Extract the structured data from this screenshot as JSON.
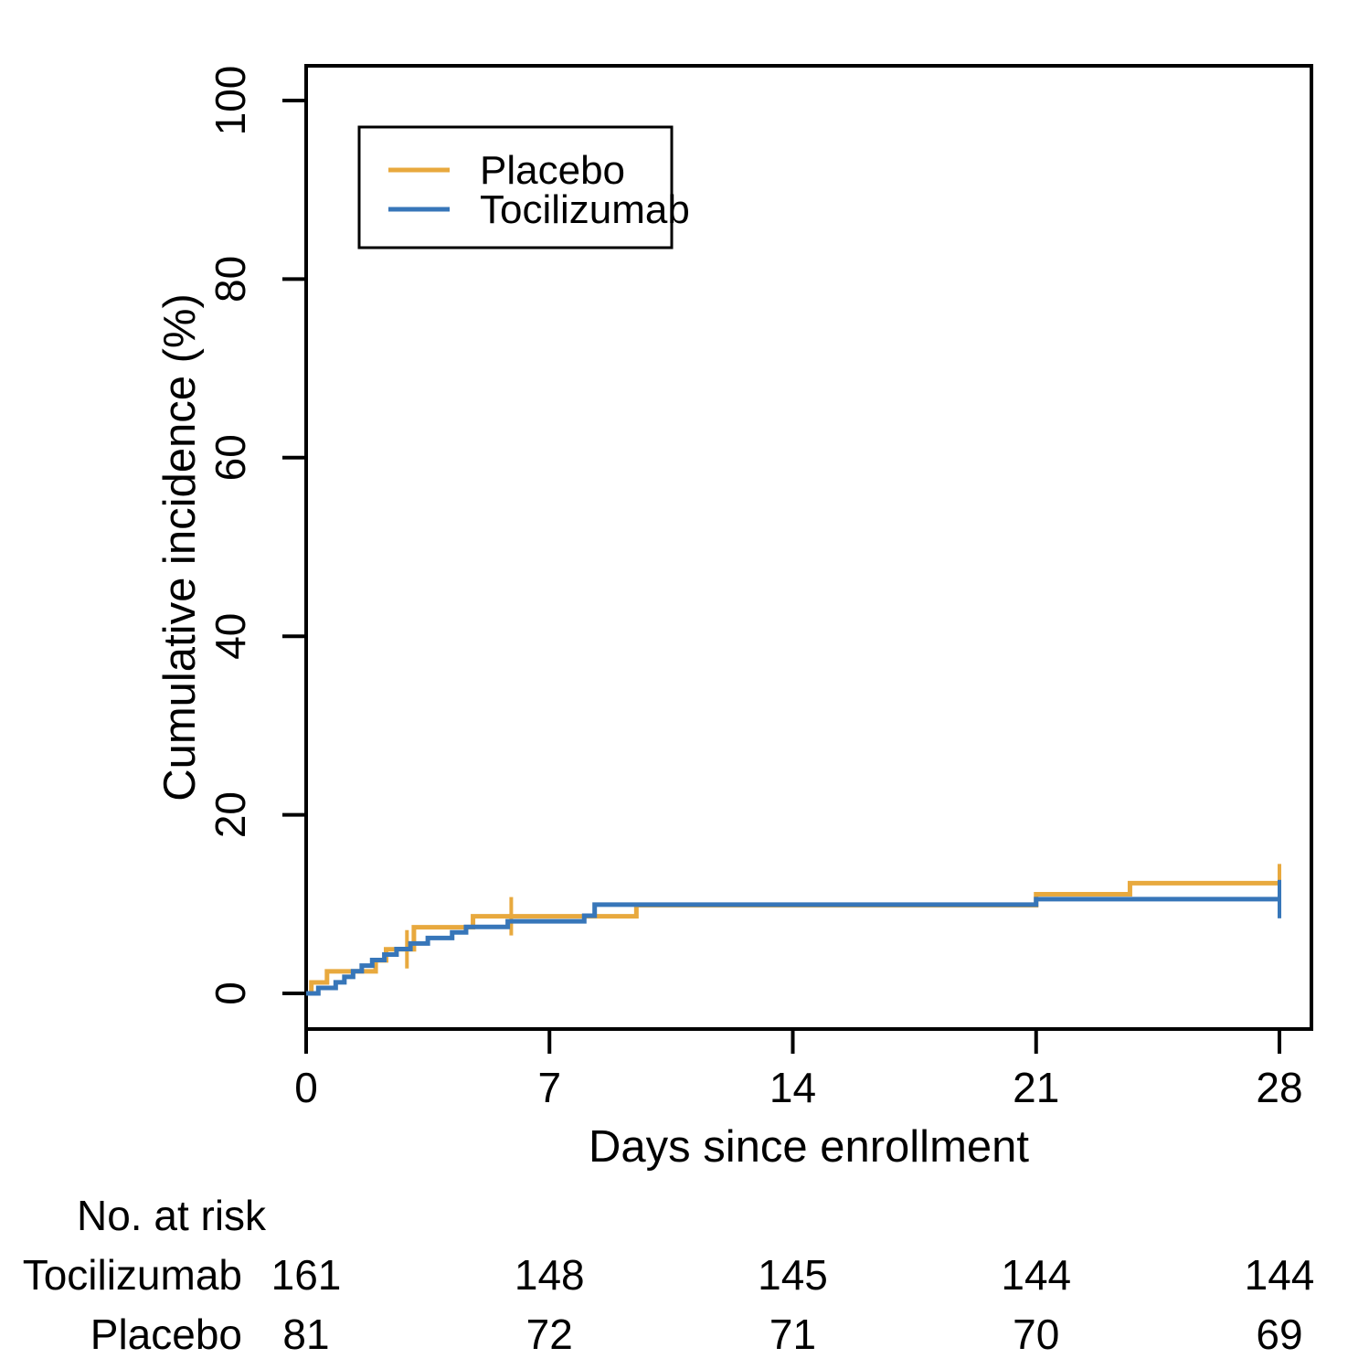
{
  "colors": {
    "placebo": "#E8A93E",
    "tocilizumab": "#3776B9",
    "axis": "#000000",
    "background": "#ffffff"
  },
  "legend": {
    "items": [
      {
        "label": "Placebo",
        "color": "#E8A93E"
      },
      {
        "label": "Tocilizumab",
        "color": "#3776B9"
      }
    ]
  },
  "chart_data": {
    "type": "line",
    "subtype": "step-cumulative-incidence",
    "title": "",
    "xlabel": "Days since enrollment",
    "ylabel": "Cumulative incidence (%)",
    "xlim": [
      0,
      28
    ],
    "ylim": [
      0,
      100
    ],
    "x_ticks": [
      0,
      7,
      14,
      21,
      28
    ],
    "y_ticks": [
      0,
      20,
      40,
      60,
      80,
      100
    ],
    "grid": false,
    "legend_position": "top-left-inside",
    "series": [
      {
        "name": "Placebo",
        "color": "#E8A93E",
        "steps": [
          [
            0,
            0
          ],
          [
            0.15,
            1.23
          ],
          [
            0.6,
            2.47
          ],
          [
            2.0,
            3.7
          ],
          [
            2.3,
            4.94
          ],
          [
            3.1,
            7.41
          ],
          [
            4.8,
            8.64
          ],
          [
            9.5,
            9.88
          ],
          [
            21,
            11.11
          ],
          [
            23.7,
            12.35
          ],
          [
            28,
            12.35
          ]
        ],
        "censor_marks": [
          [
            2.9,
            4.94
          ],
          [
            5.9,
            8.64
          ],
          [
            28,
            12.35
          ]
        ]
      },
      {
        "name": "Tocilizumab",
        "color": "#3776B9",
        "steps": [
          [
            0,
            0
          ],
          [
            0.35,
            0.62
          ],
          [
            0.85,
            1.24
          ],
          [
            1.1,
            1.86
          ],
          [
            1.35,
            2.48
          ],
          [
            1.6,
            3.11
          ],
          [
            1.9,
            3.73
          ],
          [
            2.25,
            4.35
          ],
          [
            2.6,
            4.97
          ],
          [
            3.0,
            5.59
          ],
          [
            3.5,
            6.21
          ],
          [
            4.2,
            6.83
          ],
          [
            4.6,
            7.45
          ],
          [
            5.8,
            8.07
          ],
          [
            8.0,
            8.7
          ],
          [
            8.3,
            9.94
          ],
          [
            21,
            10.56
          ],
          [
            28,
            10.56
          ]
        ],
        "censor_marks": [
          [
            28,
            10.56
          ]
        ]
      }
    ]
  },
  "risk_table": {
    "title": "No. at risk",
    "times": [
      0,
      7,
      14,
      21,
      28
    ],
    "rows": [
      {
        "label": "Tocilizumab",
        "counts": [
          "161",
          "148",
          "145",
          "144",
          "144"
        ]
      },
      {
        "label": "Placebo",
        "counts": [
          "81",
          "72",
          "71",
          "70",
          "69"
        ]
      }
    ]
  }
}
